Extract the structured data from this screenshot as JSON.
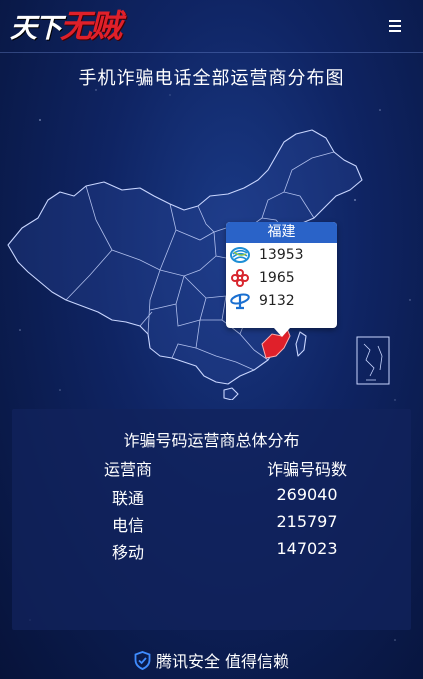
{
  "header": {
    "logo_plain": "天下",
    "logo_red": "无贼",
    "menu_icon": "hamburger-menu-icon"
  },
  "page_title": "手机诈骗电话全部运营商分布图",
  "colors": {
    "background": "#0f2463",
    "tooltip_header": "#2a63c8",
    "highlight_region": "#e0202a",
    "china_mobile": "#1e8fd6",
    "china_unicom": "#d8262e",
    "china_telecom": "#1a6fd0"
  },
  "map_tooltip": {
    "province": "福建",
    "rows": [
      {
        "icon": "china-mobile-logo-icon",
        "value": "13953"
      },
      {
        "icon": "china-unicom-logo-icon",
        "value": "1965"
      },
      {
        "icon": "china-telecom-logo-icon",
        "value": "9132"
      }
    ]
  },
  "summary": {
    "title": "诈骗号码运营商总体分布",
    "headers": [
      "运营商",
      "诈骗号码数"
    ],
    "rows": [
      {
        "carrier": "联通",
        "count": "269040"
      },
      {
        "carrier": "电信",
        "count": "215797"
      },
      {
        "carrier": "移动",
        "count": "147023"
      }
    ]
  },
  "footer": {
    "icon": "shield-check-icon",
    "text": "腾讯安全 值得信赖"
  }
}
